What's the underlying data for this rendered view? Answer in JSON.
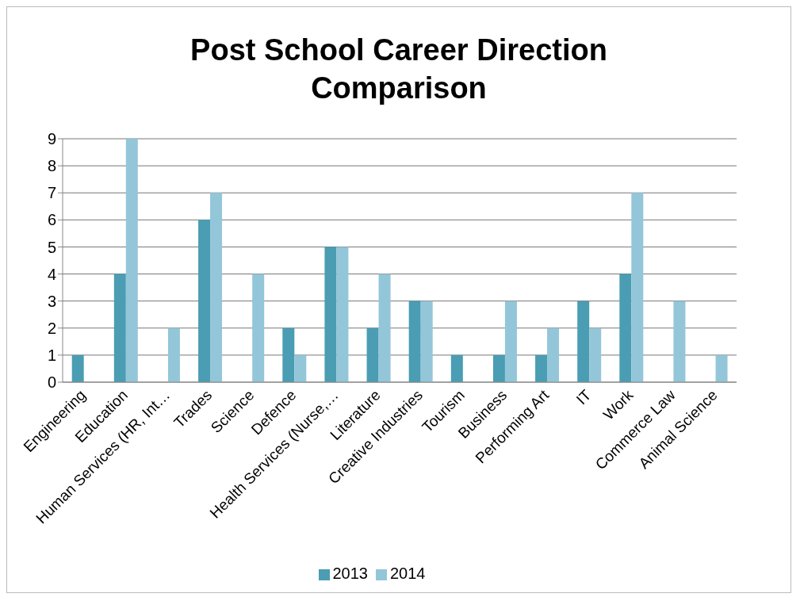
{
  "chart_data": {
    "type": "bar",
    "title": "Post School Career Direction Comparison",
    "categories": [
      "Engineering",
      "Education",
      "Human Services (HR, Int…",
      "Trades",
      "Science",
      "Defence",
      "Health Services (Nurse,…",
      "Literature",
      "Creative Industries",
      "Tourism",
      "Business",
      "Performing Art",
      "IT",
      "Work",
      "Commerce Law",
      "Animal Science"
    ],
    "series": [
      {
        "name": "2013",
        "color": "#4a9db3",
        "values": [
          1,
          4,
          0,
          6,
          0,
          2,
          5,
          2,
          3,
          1,
          1,
          1,
          3,
          4,
          0,
          0
        ]
      },
      {
        "name": "2014",
        "color": "#93c6d8",
        "values": [
          0,
          9,
          2,
          7,
          4,
          1,
          5,
          4,
          3,
          0,
          3,
          2,
          2,
          7,
          3,
          1
        ]
      }
    ],
    "ylim": [
      0,
      9
    ],
    "yticks": [
      0,
      1,
      2,
      3,
      4,
      5,
      6,
      7,
      8,
      9
    ],
    "grid": "y",
    "legend": "bottom"
  }
}
